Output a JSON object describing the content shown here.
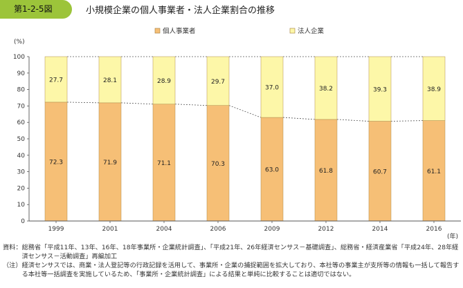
{
  "figure": {
    "label": "第1-2-5図",
    "title": "小規模企業の個人事業者・法人企業割合の推移"
  },
  "chart_data": {
    "type": "bar",
    "stacked": true,
    "categories": [
      "1999",
      "2001",
      "2004",
      "2006",
      "2009",
      "2012",
      "2014",
      "2016"
    ],
    "series": [
      {
        "name": "個人事業者",
        "color": "#f6bf76",
        "values": [
          72.3,
          71.9,
          71.1,
          70.3,
          63.0,
          61.8,
          60.7,
          61.1
        ]
      },
      {
        "name": "法人企業",
        "color": "#fdf7a8",
        "values": [
          27.7,
          28.1,
          28.9,
          29.7,
          37.0,
          38.2,
          39.3,
          38.9
        ]
      }
    ],
    "value_labels": [
      [
        "72.3",
        "71.9",
        "71.1",
        "70.3",
        "63.0",
        "61.8",
        "60.7",
        "61.1"
      ],
      [
        "27.7",
        "28.1",
        "28.9",
        "29.7",
        "37.0",
        "38.2",
        "39.3",
        "38.9"
      ]
    ],
    "yunit": "(%)",
    "xunit": "(年)",
    "ylim": [
      0,
      100
    ],
    "yticks": [
      "0",
      "10",
      "20",
      "30",
      "40",
      "50",
      "60",
      "70",
      "80",
      "90",
      "100"
    ],
    "legend_position": "top",
    "grid": false,
    "connector_lines": "dotted"
  },
  "notes": [
    {
      "label": "資料：",
      "text": "総務省「平成11年、13年、16年、18年事業所・企業統計調査」、「平成21年、26年経済センサス－基礎調査」、総務省・経済産業省「平成24年、28年経済センサス－活動調査」再編加工"
    },
    {
      "label": "（注）",
      "text": "経済センサスでは、商業・法人登記等の行政記録を活用して、事業所・企業の捕捉範囲を拡大しており、本社等の事業主が支所等の情報も一括して報告する本社等一括調査を実施しているため、「事業所・企業統計調査」による結果と単純に比較することは適切ではない。"
    }
  ]
}
